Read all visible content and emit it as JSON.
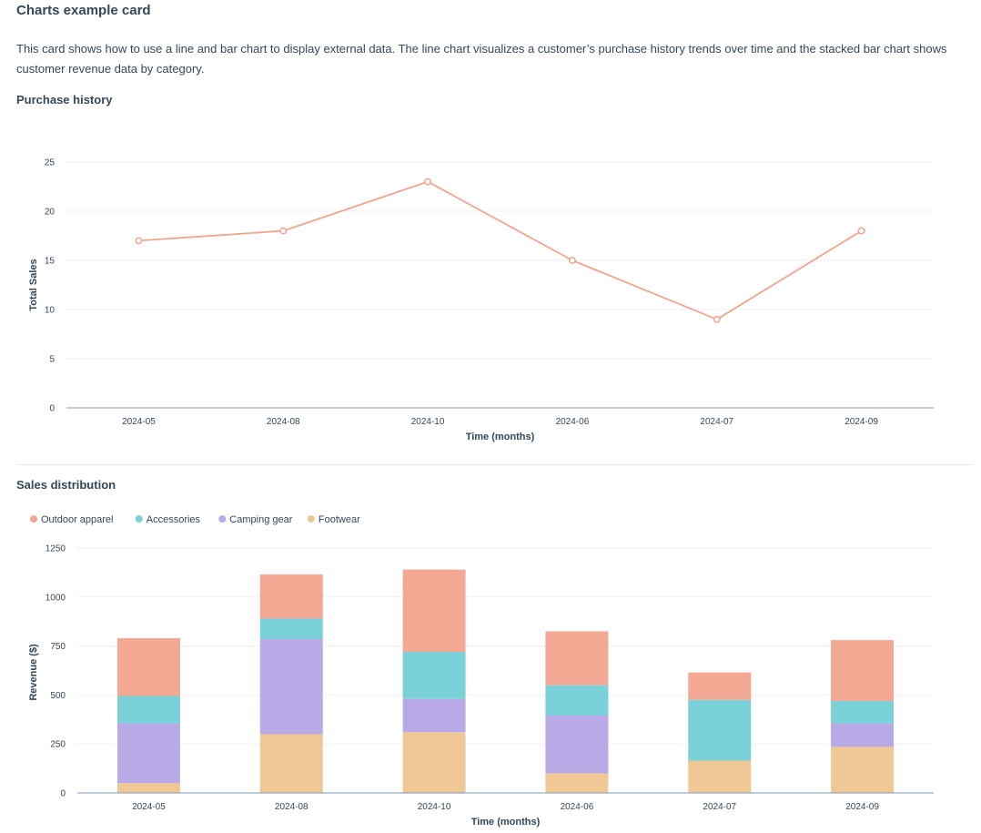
{
  "card": {
    "title": "Charts example card",
    "description": "This card shows how to use a line and bar chart to display external data. The line chart visualizes a customer’s purchase history trends over time and the stacked bar chart shows customer revenue data by category."
  },
  "colors": {
    "line": "#f2a58e",
    "gridline": "#dfe3eb",
    "axis": "#7c98b6",
    "text": "#33475b"
  },
  "chart_data": [
    {
      "id": "purchase-history",
      "type": "line",
      "title": "Purchase history",
      "categories": [
        "2024-05",
        "2024-08",
        "2024-10",
        "2024-06",
        "2024-07",
        "2024-09"
      ],
      "series": [
        {
          "values": [
            17,
            18,
            23,
            15,
            9,
            18
          ]
        }
      ],
      "xlabel": "Time (months)",
      "ylabel": "Total Sales",
      "ylim": [
        0,
        25
      ],
      "yticks": [
        0,
        5,
        10,
        15,
        20,
        25
      ],
      "grid": true,
      "legend": "none"
    },
    {
      "id": "sales-distribution",
      "type": "bar",
      "stacked": true,
      "title": "Sales distribution",
      "categories": [
        "2024-05",
        "2024-08",
        "2024-10",
        "2024-06",
        "2024-07",
        "2024-09"
      ],
      "series": [
        {
          "name": "Outdoor apparel",
          "color": "#f2a893",
          "values": [
            295,
            225,
            420,
            275,
            140,
            310
          ]
        },
        {
          "name": "Accessories",
          "color": "#7bd1d8",
          "values": [
            140,
            105,
            240,
            155,
            310,
            115
          ]
        },
        {
          "name": "Camping gear",
          "color": "#b9a9e6",
          "values": [
            305,
            485,
            170,
            295,
            0,
            120
          ]
        },
        {
          "name": "Footwear",
          "color": "#f0c895",
          "values": [
            50,
            300,
            310,
            100,
            165,
            235
          ]
        }
      ],
      "xlabel": "Time (months)",
      "ylabel": "Revenue ($)",
      "ylim": [
        0,
        1250
      ],
      "yticks": [
        0,
        250,
        500,
        750,
        1000,
        1250
      ],
      "grid": true,
      "legend": "top-left"
    }
  ]
}
